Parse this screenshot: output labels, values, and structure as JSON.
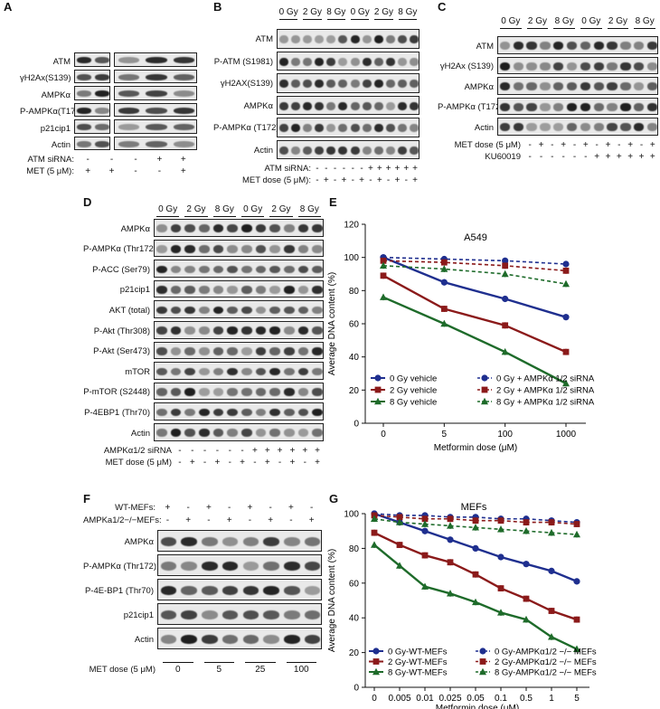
{
  "panels": {
    "A": {
      "label": "A",
      "rows": [
        "ATM",
        "γH2Ax(S139)",
        "AMPKα",
        "P-AMPKα(T172)",
        "p21cip1",
        "Actin"
      ],
      "cond_labels": [
        "ATM siRNA:",
        "MET (5 μM):"
      ],
      "signs": [
        [
          "-",
          "-",
          "-",
          "+",
          "+"
        ],
        [
          "+",
          "+",
          "-",
          "-",
          "+"
        ]
      ]
    },
    "B": {
      "label": "B",
      "doses": [
        "0 Gy",
        "2 Gy",
        "8 Gy",
        "0 Gy",
        "2 Gy",
        "8 Gy"
      ],
      "rows": [
        "ATM",
        "P-ATM (S1981)",
        "γH2AX(S139)",
        "AMPKα",
        "P-AMPKα (T172)",
        "Actin"
      ],
      "cond_labels": [
        "ATM siRNA:",
        "MET dose (5 μM):"
      ],
      "signs": [
        [
          "-",
          "-",
          "-",
          "-",
          "-",
          "-",
          "+",
          "+",
          "+",
          "+",
          "+",
          "+"
        ],
        [
          "-",
          "+",
          "-",
          "+",
          "-",
          "+",
          "-",
          "+",
          "-",
          "+",
          "-",
          "+"
        ]
      ]
    },
    "C": {
      "label": "C",
      "doses": [
        "0 Gy",
        "2 Gy",
        "8 Gy",
        "0 Gy",
        "2 Gy",
        "8 Gy"
      ],
      "rows": [
        "ATM",
        "γH2Ax (S139)",
        "AMPKα",
        "P-AMPKα (T172)",
        "Actin"
      ],
      "cond_labels": [
        "MET dose (5 μM)",
        "KU60019"
      ],
      "signs": [
        [
          "-",
          "+",
          "-",
          "+",
          "-",
          "+",
          "-",
          "+",
          "-",
          "+",
          "-",
          "+"
        ],
        [
          "-",
          "-",
          "-",
          "-",
          "-",
          "-",
          "+",
          "+",
          "+",
          "+",
          "+",
          "+"
        ]
      ]
    },
    "D": {
      "label": "D",
      "doses": [
        "0 Gy",
        "2 Gy",
        "8 Gy",
        "0 Gy",
        "2 Gy",
        "8 Gy"
      ],
      "rows": [
        "AMPKα",
        "P-AMPKα (Thr172)",
        "P-ACC (Ser79)",
        "p21cip1",
        "AKT (total)",
        "P-Akt (Thr308)",
        "P-Akt (Ser473)",
        "mTOR",
        "P-mTOR (S2448)",
        "P-4EBP1 (Thr70)",
        "Actin"
      ],
      "cond_labels": [
        "AMPKα1/2 siRNA",
        "MET dose (5 μM)"
      ],
      "signs": [
        [
          "-",
          "-",
          "-",
          "-",
          "-",
          "-",
          "+",
          "+",
          "+",
          "+",
          "+",
          "+"
        ],
        [
          "-",
          "+",
          "-",
          "+",
          "-",
          "+",
          "-",
          "+",
          "-",
          "+",
          "-",
          "+"
        ]
      ]
    },
    "F": {
      "label": "F",
      "cond_labels": [
        "WT-MEFs:",
        "AMPKa1/2−/−MEFs:"
      ],
      "signs": [
        [
          "+",
          "-",
          "+",
          "-",
          "+",
          "-",
          "+",
          "-"
        ],
        [
          "-",
          "+",
          "-",
          "+",
          "-",
          "+",
          "-",
          "+"
        ]
      ],
      "rows": [
        "AMPKα",
        "P-AMPKα (Thr172)",
        "P-4E-BP1 (Thr70)",
        "p21cip1",
        "Actin"
      ],
      "dose_label": "MET dose (5 μM)",
      "doses": [
        "0",
        "5",
        "25",
        "100"
      ]
    }
  },
  "chart_data": [
    {
      "panel": "E",
      "type": "line",
      "title": "A549",
      "xlabel": "Metformin dose (μM)",
      "ylabel": "Average DNA content (%)",
      "categories": [
        "0",
        "5",
        "100",
        "1000"
      ],
      "ylim": [
        0,
        120
      ],
      "yticks": [
        "0",
        "20",
        "40",
        "60",
        "80",
        "100",
        "120"
      ],
      "series": [
        {
          "name": "0 Gy vehicle",
          "color": "#1f2f8f",
          "dashed": false,
          "marker": "circle",
          "values": [
            100,
            85,
            75,
            64
          ]
        },
        {
          "name": "2 Gy vehicle",
          "color": "#8b1a1a",
          "dashed": false,
          "marker": "square",
          "values": [
            89,
            69,
            59,
            43
          ]
        },
        {
          "name": "8 Gy vehicle",
          "color": "#1e6b2a",
          "dashed": false,
          "marker": "triangle",
          "values": [
            76,
            60,
            43,
            24
          ]
        },
        {
          "name": "0 Gy + AMPKα 1/2 siRNA",
          "color": "#1f2f8f",
          "dashed": true,
          "marker": "circle",
          "values": [
            100,
            99,
            98,
            96
          ]
        },
        {
          "name": "2 Gy + AMPKα 1/2 siRNA",
          "color": "#8b1a1a",
          "dashed": true,
          "marker": "square",
          "values": [
            98,
            97,
            95,
            92
          ]
        },
        {
          "name": "8 Gy + AMPKα 1/2 siRNA",
          "color": "#1e6b2a",
          "dashed": true,
          "marker": "triangle",
          "values": [
            95,
            93,
            90,
            84
          ]
        }
      ],
      "legend": "bottom"
    },
    {
      "panel": "G",
      "type": "line",
      "title": "MEFs",
      "xlabel": "Metformin dose (μM)",
      "ylabel": "Average DNA content (%)",
      "categories": [
        "0",
        "0.005",
        "0.01",
        "0.025",
        "0.05",
        "0.1",
        "0.5",
        "1",
        "5"
      ],
      "ylim": [
        0,
        100
      ],
      "yticks": [
        "0",
        "20",
        "40",
        "60",
        "80",
        "100"
      ],
      "series": [
        {
          "name": "0 Gy-WT-MEFs",
          "color": "#1f2f8f",
          "dashed": false,
          "marker": "circle",
          "values": [
            100,
            95,
            90,
            85,
            80,
            75,
            71,
            67,
            61
          ]
        },
        {
          "name": "2 Gy-WT-MEFs",
          "color": "#8b1a1a",
          "dashed": false,
          "marker": "square",
          "values": [
            89,
            82,
            76,
            72,
            65,
            57,
            51,
            44,
            39
          ]
        },
        {
          "name": "8 Gy-WT-MEFs",
          "color": "#1e6b2a",
          "dashed": false,
          "marker": "triangle",
          "values": [
            82,
            70,
            58,
            54,
            49,
            43,
            39,
            29,
            22
          ]
        },
        {
          "name": "0 Gy-AMPKα1/2 −/− MEFs",
          "color": "#1f2f8f",
          "dashed": true,
          "marker": "circle",
          "values": [
            100,
            99,
            99,
            98,
            98,
            97,
            97,
            96,
            95
          ]
        },
        {
          "name": "2 Gy-AMPKα1/2 −/− MEFs",
          "color": "#8b1a1a",
          "dashed": true,
          "marker": "square",
          "values": [
            99,
            98,
            97,
            97,
            96,
            96,
            95,
            95,
            94
          ]
        },
        {
          "name": "8 Gy-AMPKα1/2 −/− MEFs",
          "color": "#1e6b2a",
          "dashed": true,
          "marker": "triangle",
          "values": [
            97,
            95,
            94,
            93,
            92,
            91,
            90,
            89,
            88
          ]
        }
      ],
      "legend": "bottom"
    }
  ]
}
